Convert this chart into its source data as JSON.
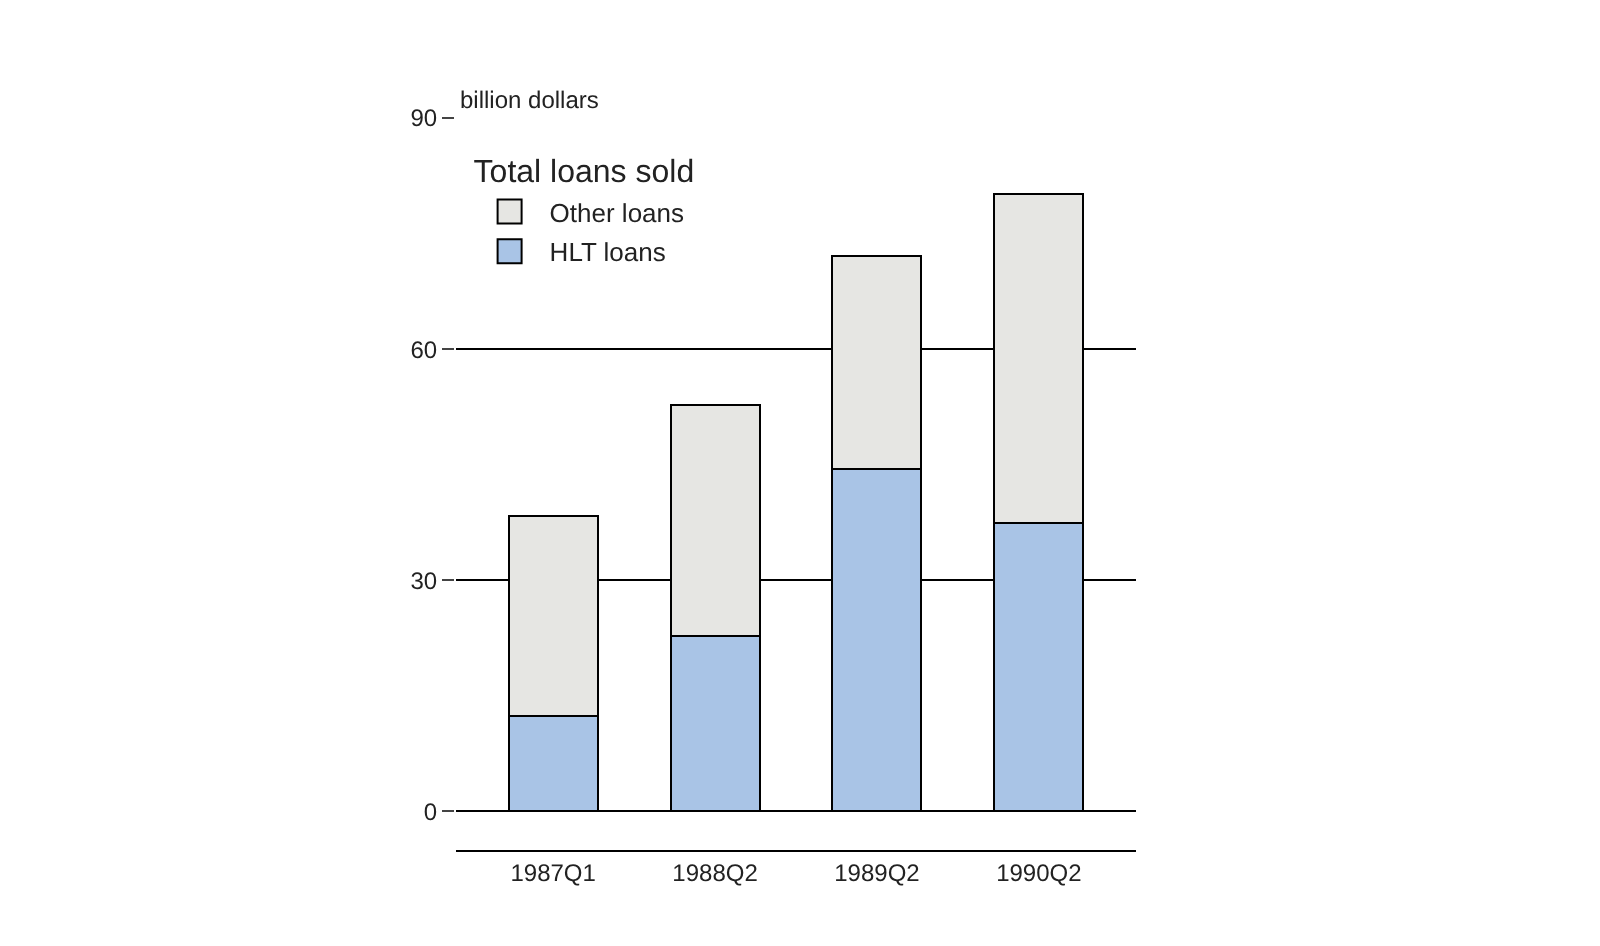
{
  "chart_data": {
    "type": "bar",
    "stacked": true,
    "ylabel": "billion dollars",
    "legend_title": "Total loans sold",
    "categories": [
      "1987Q1",
      "1988Q2",
      "1989Q2",
      "1990Q2"
    ],
    "series": [
      {
        "name": "HLT loans",
        "color": "#a9c4e6",
        "values": [
          12.4,
          22.8,
          44.5,
          37.5
        ]
      },
      {
        "name": "Other loans",
        "color": "#e6e6e3",
        "values": [
          25.9,
          30.0,
          27.6,
          42.7
        ]
      }
    ],
    "ylim": [
      -5,
      90
    ],
    "yticks": [
      0,
      30,
      60,
      90
    ],
    "grid": "y",
    "legend": "top left"
  }
}
